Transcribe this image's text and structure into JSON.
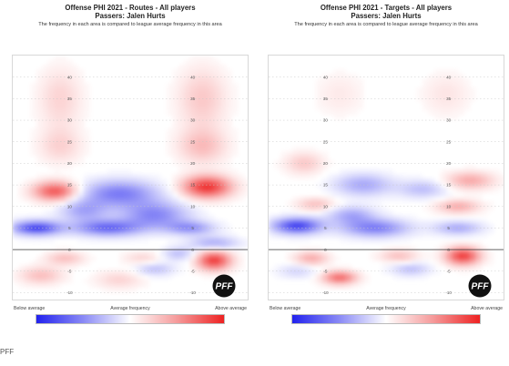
{
  "credit": "PFF",
  "logo_text": "PFF",
  "chart_data": [
    {
      "type": "heatmap",
      "title": "Offense PHI 2021 - Routes - All players",
      "subtitle": "Passers: Jalen Hurts",
      "note": "The frequency in each area is compared to league average frequency in this area",
      "scale_labels": {
        "below": "Below average",
        "mid": "Average frequency",
        "above": "Above average"
      },
      "yard_labels": [
        "40",
        "35",
        "30",
        "25",
        "20",
        "15",
        "10",
        "5",
        "0",
        "-5",
        "-10"
      ],
      "line_of_scrimmage": 0,
      "y_range": [
        -12,
        45
      ],
      "colors": {
        "below": "#2222ee",
        "average": "#ffffff",
        "above": "#ee2222"
      },
      "hotspots": [
        {
          "x": 0.2,
          "y": 35,
          "v": 0.2,
          "rx": 0.09,
          "ry": 7
        },
        {
          "x": 0.8,
          "y": 35,
          "v": 0.25,
          "rx": 0.1,
          "ry": 7
        },
        {
          "x": 0.2,
          "y": 24,
          "v": 0.2,
          "rx": 0.09,
          "ry": 4
        },
        {
          "x": 0.8,
          "y": 24,
          "v": 0.3,
          "rx": 0.1,
          "ry": 4
        },
        {
          "x": 0.18,
          "y": 13.5,
          "v": 0.8,
          "rx": 0.09,
          "ry": 2.2
        },
        {
          "x": 0.82,
          "y": 14.5,
          "v": 0.95,
          "rx": 0.1,
          "ry": 2.5
        },
        {
          "x": 0.45,
          "y": 13,
          "v": -0.6,
          "rx": 0.16,
          "ry": 3
        },
        {
          "x": 0.6,
          "y": 8,
          "v": -0.55,
          "rx": 0.14,
          "ry": 3
        },
        {
          "x": 0.3,
          "y": 9,
          "v": -0.4,
          "rx": 0.1,
          "ry": 2.5
        },
        {
          "x": 0.1,
          "y": 5,
          "v": -0.9,
          "rx": 0.1,
          "ry": 1.6
        },
        {
          "x": 0.4,
          "y": 5,
          "v": -0.7,
          "rx": 0.14,
          "ry": 1.8
        },
        {
          "x": 0.75,
          "y": 5,
          "v": -0.5,
          "rx": 0.1,
          "ry": 1.5
        },
        {
          "x": 0.85,
          "y": 1.5,
          "v": -0.4,
          "rx": 0.1,
          "ry": 1.5
        },
        {
          "x": 0.85,
          "y": -2.5,
          "v": 0.9,
          "rx": 0.07,
          "ry": 2.2
        },
        {
          "x": 0.22,
          "y": -2,
          "v": 0.3,
          "rx": 0.08,
          "ry": 1.5
        },
        {
          "x": 0.55,
          "y": -2,
          "v": 0.2,
          "rx": 0.08,
          "ry": 1.5
        },
        {
          "x": 0.7,
          "y": -1,
          "v": -0.3,
          "rx": 0.07,
          "ry": 1.5
        },
        {
          "x": 0.12,
          "y": -6,
          "v": 0.3,
          "rx": 0.09,
          "ry": 2
        },
        {
          "x": 0.45,
          "y": -7,
          "v": 0.2,
          "rx": 0.1,
          "ry": 2
        },
        {
          "x": 0.6,
          "y": -4.5,
          "v": -0.3,
          "rx": 0.08,
          "ry": 1.5
        }
      ]
    },
    {
      "type": "heatmap",
      "title": "Offense PHI 2021 - Targets - All players",
      "subtitle": "Passers: Jalen Hurts",
      "note": "The frequency in each area is compared to league average frequency in this area",
      "scale_labels": {
        "below": "Below average",
        "mid": "Average frequency",
        "above": "Above average"
      },
      "yard_labels": [
        "40",
        "35",
        "30",
        "25",
        "20",
        "15",
        "10",
        "5",
        "0",
        "-5",
        "-10"
      ],
      "line_of_scrimmage": 0,
      "y_range": [
        -12,
        45
      ],
      "colors": {
        "below": "#2222ee",
        "average": "#ffffff",
        "above": "#ee2222"
      },
      "hotspots": [
        {
          "x": 0.3,
          "y": 36,
          "v": 0.1,
          "rx": 0.1,
          "ry": 5
        },
        {
          "x": 0.75,
          "y": 36,
          "v": 0.12,
          "rx": 0.1,
          "ry": 5
        },
        {
          "x": 0.15,
          "y": 20,
          "v": 0.25,
          "rx": 0.08,
          "ry": 2.5
        },
        {
          "x": 0.85,
          "y": 16,
          "v": 0.4,
          "rx": 0.1,
          "ry": 2
        },
        {
          "x": 0.4,
          "y": 15,
          "v": -0.4,
          "rx": 0.12,
          "ry": 2.5
        },
        {
          "x": 0.65,
          "y": 14,
          "v": -0.3,
          "rx": 0.1,
          "ry": 2
        },
        {
          "x": 0.2,
          "y": 10.5,
          "v": 0.3,
          "rx": 0.08,
          "ry": 1.5
        },
        {
          "x": 0.8,
          "y": 10,
          "v": 0.4,
          "rx": 0.09,
          "ry": 1.5
        },
        {
          "x": 0.12,
          "y": 5.5,
          "v": -0.9,
          "rx": 0.1,
          "ry": 1.8
        },
        {
          "x": 0.45,
          "y": 5,
          "v": -0.6,
          "rx": 0.14,
          "ry": 2
        },
        {
          "x": 0.8,
          "y": 5,
          "v": -0.4,
          "rx": 0.1,
          "ry": 1.5
        },
        {
          "x": 0.35,
          "y": 8,
          "v": -0.4,
          "rx": 0.1,
          "ry": 2
        },
        {
          "x": 0.82,
          "y": -1.5,
          "v": 0.9,
          "rx": 0.07,
          "ry": 2
        },
        {
          "x": 0.18,
          "y": -2,
          "v": 0.4,
          "rx": 0.07,
          "ry": 1.5
        },
        {
          "x": 0.55,
          "y": -1.5,
          "v": 0.3,
          "rx": 0.08,
          "ry": 1.5
        },
        {
          "x": 0.3,
          "y": -6.5,
          "v": 0.7,
          "rx": 0.07,
          "ry": 1.5
        },
        {
          "x": 0.6,
          "y": -4.5,
          "v": -0.3,
          "rx": 0.08,
          "ry": 1.5
        },
        {
          "x": 0.12,
          "y": -5,
          "v": -0.2,
          "rx": 0.08,
          "ry": 1.5
        }
      ]
    }
  ]
}
